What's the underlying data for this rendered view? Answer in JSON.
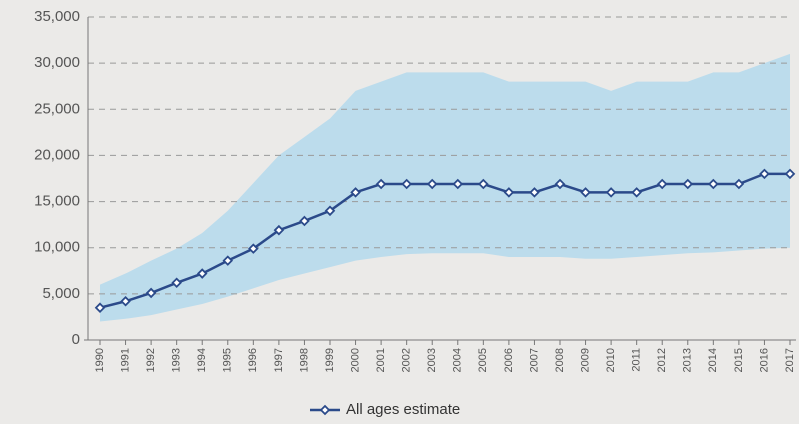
{
  "chart_data": {
    "type": "line",
    "categories": [
      "1990",
      "1991",
      "1992",
      "1993",
      "1994",
      "1995",
      "1996",
      "1997",
      "1998",
      "1999",
      "2000",
      "2001",
      "2002",
      "2003",
      "2004",
      "2005",
      "2006",
      "2007",
      "2008",
      "2009",
      "2010",
      "2011",
      "2012",
      "2013",
      "2014",
      "2015",
      "2016",
      "2017"
    ],
    "series": [
      {
        "name": "All ages estimate",
        "color": "#2b4a8a",
        "values": [
          3500,
          4200,
          5100,
          6200,
          7200,
          8600,
          9900,
          11900,
          12900,
          14000,
          16000,
          16900,
          16900,
          16900,
          16900,
          16900,
          16000,
          16000,
          16900,
          16000,
          16000,
          16000,
          16900,
          16900,
          16900,
          16900,
          18000,
          18000
        ]
      }
    ],
    "band": {
      "color": "#bcdcec",
      "upper": [
        6000,
        7200,
        8600,
        9900,
        11600,
        14000,
        17000,
        20000,
        22000,
        24000,
        27000,
        28000,
        29000,
        29000,
        29000,
        29000,
        28000,
        28000,
        28000,
        28000,
        27000,
        28000,
        28000,
        28000,
        29000,
        29000,
        30000,
        31000
      ],
      "lower": [
        2000,
        2300,
        2700,
        3300,
        3900,
        4700,
        5600,
        6500,
        7200,
        7900,
        8600,
        9000,
        9300,
        9400,
        9400,
        9400,
        9000,
        9000,
        9000,
        8800,
        8800,
        9000,
        9200,
        9400,
        9500,
        9700,
        9900,
        10000
      ]
    },
    "ylim": [
      0,
      35000
    ],
    "yticks": [
      0,
      {
        "value": 5000,
        "label": "5,000"
      },
      {
        "value": 10000,
        "label": "10,000"
      },
      {
        "value": 15000,
        "label": "15,000"
      },
      {
        "value": 20000,
        "label": "20,000"
      },
      {
        "value": 25000,
        "label": "25,000"
      },
      {
        "value": 30000,
        "label": "30,000"
      },
      {
        "value": 35000,
        "label": "35,000"
      }
    ],
    "grid": true,
    "legend": "bottom"
  }
}
